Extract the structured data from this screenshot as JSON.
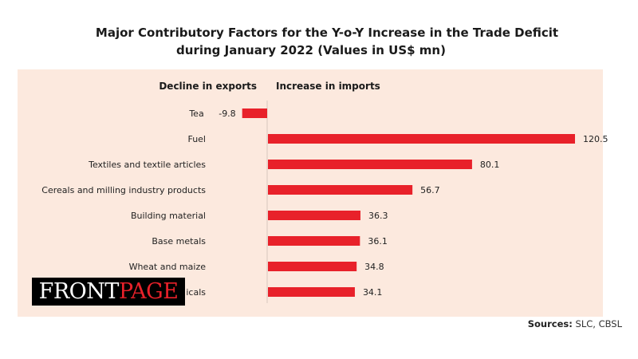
{
  "chart_data": {
    "type": "bar",
    "orientation": "horizontal",
    "title": "Major Contributory Factors for the Y-o-Y Increase in the Trade Deficit",
    "subtitle": "during January 2022 (Values in US$ mn)",
    "left_header": "Decline in exports",
    "right_header": "Increase in imports",
    "categories": [
      "Tea",
      "Fuel",
      "Textiles and textile articles",
      "Cereals and milling industry products",
      "Building material",
      "Base metals",
      "Wheat and maize",
      "icals"
    ],
    "values": [
      -9.8,
      120.5,
      80.1,
      56.7,
      36.3,
      36.1,
      34.8,
      34.1
    ],
    "value_labels": [
      "-9.8",
      "120.5",
      "80.1",
      "56.7",
      "36.3",
      "36.1",
      "34.8",
      "34.1"
    ],
    "bar_color": "#e8212a",
    "background_color": "#fce9de",
    "xlabel": "",
    "ylabel": "",
    "grid": false,
    "legend": "none"
  },
  "source": {
    "label": "Sources:",
    "text": " SLC, CBSL"
  },
  "watermark": {
    "part1": "FRONT",
    "part2": "PAGE"
  }
}
